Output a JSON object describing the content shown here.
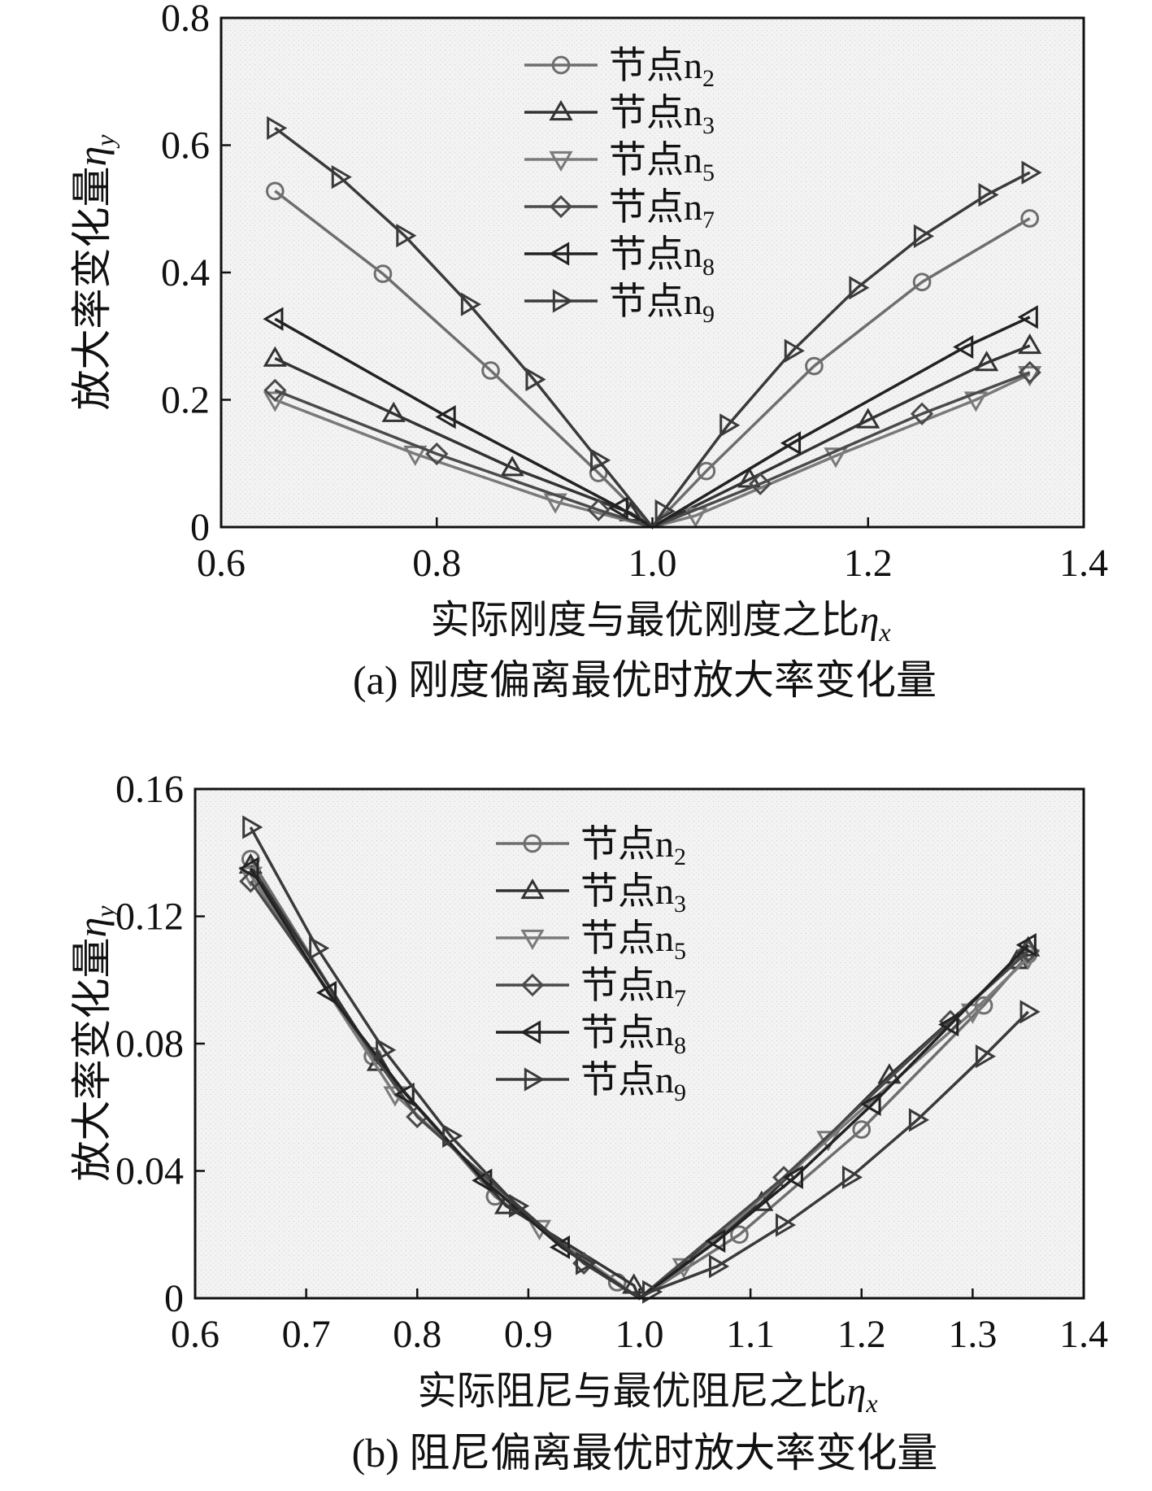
{
  "chart_data": [
    {
      "type": "line",
      "caption": "(a) 刚度偏离最优时放大率变化量",
      "xlabel": "实际刚度与最优刚度之比",
      "xlabel_symbol": "η",
      "xlabel_sub": "x",
      "ylabel": "放大率变化量",
      "ylabel_symbol": "η",
      "ylabel_sub": "y",
      "xlim": [
        0.6,
        1.4
      ],
      "ylim": [
        0,
        0.8
      ],
      "xticks": [
        "0.6",
        "0.8",
        "1.0",
        "1.2",
        "1.4"
      ],
      "yticks": [
        "0",
        "0.2",
        "0.4",
        "0.6",
        "0.8"
      ],
      "grid": false,
      "legend_position": "top-center",
      "series": [
        {
          "name": "节点",
          "sub": "2",
          "marker": "circle",
          "color": "#6e6e6e",
          "x": [
            0.65,
            0.75,
            0.85,
            0.95,
            1.0,
            1.05,
            1.15,
            1.25,
            1.35
          ],
          "y": [
            0.528,
            0.398,
            0.246,
            0.085,
            0.0,
            0.088,
            0.253,
            0.385,
            0.485
          ]
        },
        {
          "name": "节点",
          "sub": "3",
          "marker": "triangle-up",
          "color": "#333333",
          "x": [
            0.65,
            0.76,
            0.87,
            0.98,
            1.0,
            1.09,
            1.2,
            1.31,
            1.35
          ],
          "y": [
            0.265,
            0.178,
            0.093,
            0.022,
            0.0,
            0.075,
            0.168,
            0.258,
            0.285
          ]
        },
        {
          "name": "节点",
          "sub": "5",
          "marker": "triangle-down",
          "color": "#7a7a7a",
          "x": [
            0.65,
            0.78,
            0.91,
            1.0,
            1.04,
            1.17,
            1.3,
            1.35
          ],
          "y": [
            0.2,
            0.115,
            0.04,
            0.0,
            0.018,
            0.112,
            0.2,
            0.24
          ]
        },
        {
          "name": "节点",
          "sub": "7",
          "marker": "diamond",
          "color": "#4a4a4a",
          "x": [
            0.65,
            0.8,
            0.95,
            1.0,
            1.1,
            1.25,
            1.35
          ],
          "y": [
            0.215,
            0.115,
            0.027,
            0.0,
            0.068,
            0.178,
            0.243
          ]
        },
        {
          "name": "节点",
          "sub": "8",
          "marker": "triangle-left",
          "color": "#222222",
          "x": [
            0.65,
            0.81,
            0.97,
            1.0,
            1.13,
            1.29,
            1.35
          ],
          "y": [
            0.327,
            0.173,
            0.03,
            0.0,
            0.132,
            0.283,
            0.33
          ]
        },
        {
          "name": "节点",
          "sub": "9",
          "marker": "triangle-right",
          "color": "#3a3a3a",
          "x": [
            0.65,
            0.71,
            0.77,
            0.83,
            0.89,
            0.95,
            1.0,
            1.01,
            1.07,
            1.13,
            1.19,
            1.25,
            1.31,
            1.35
          ],
          "y": [
            0.627,
            0.55,
            0.458,
            0.35,
            0.232,
            0.105,
            0.0,
            0.025,
            0.16,
            0.277,
            0.376,
            0.457,
            0.522,
            0.557
          ]
        }
      ]
    },
    {
      "type": "line",
      "caption": "(b) 阻尼偏离最优时放大率变化量",
      "xlabel": "实际阻尼与最优阻尼之比",
      "xlabel_symbol": "η",
      "xlabel_sub": "x",
      "ylabel": "放大率变化量",
      "ylabel_symbol": "η",
      "ylabel_sub": "y",
      "xlim": [
        0.6,
        1.4
      ],
      "ylim": [
        0,
        0.16
      ],
      "xticks": [
        "0.6",
        "0.7",
        "0.8",
        "0.9",
        "1.0",
        "1.1",
        "1.2",
        "1.3",
        "1.4"
      ],
      "yticks": [
        "0",
        "0.04",
        "0.08",
        "0.12",
        "0.16"
      ],
      "grid": false,
      "legend_position": "top-center",
      "series": [
        {
          "name": "节点",
          "sub": "2",
          "marker": "circle",
          "color": "#6e6e6e",
          "x": [
            0.65,
            0.76,
            0.87,
            0.98,
            1.0,
            1.09,
            1.2,
            1.31,
            1.35
          ],
          "y": [
            0.138,
            0.076,
            0.032,
            0.005,
            0.0,
            0.02,
            0.053,
            0.092,
            0.108
          ]
        },
        {
          "name": "节点",
          "sub": "3",
          "marker": "triangle-up",
          "color": "#333333",
          "x": [
            0.65,
            0.765,
            0.88,
            0.995,
            1.0,
            1.11,
            1.225,
            1.34,
            1.35
          ],
          "y": [
            0.136,
            0.074,
            0.029,
            0.004,
            0.0,
            0.03,
            0.07,
            0.106,
            0.11
          ]
        },
        {
          "name": "节点",
          "sub": "5",
          "marker": "triangle-down",
          "color": "#7a7a7a",
          "x": [
            0.65,
            0.78,
            0.91,
            1.0,
            1.04,
            1.17,
            1.3,
            1.35
          ],
          "y": [
            0.133,
            0.064,
            0.022,
            0.0,
            0.01,
            0.05,
            0.09,
            0.107
          ]
        },
        {
          "name": "节点",
          "sub": "7",
          "marker": "diamond",
          "color": "#4a4a4a",
          "x": [
            0.65,
            0.8,
            0.95,
            1.0,
            1.13,
            1.28,
            1.35
          ],
          "y": [
            0.131,
            0.057,
            0.011,
            0.0,
            0.038,
            0.087,
            0.109
          ]
        },
        {
          "name": "节点",
          "sub": "8",
          "marker": "triangle-left",
          "color": "#222222",
          "x": [
            0.65,
            0.72,
            0.79,
            0.86,
            0.93,
            1.0,
            1.07,
            1.14,
            1.21,
            1.28,
            1.35
          ],
          "y": [
            0.135,
            0.096,
            0.064,
            0.037,
            0.016,
            0.0,
            0.018,
            0.038,
            0.061,
            0.086,
            0.111
          ]
        },
        {
          "name": "节点",
          "sub": "9",
          "marker": "triangle-right",
          "color": "#3a3a3a",
          "x": [
            0.65,
            0.71,
            0.77,
            0.83,
            0.89,
            0.95,
            1.0,
            1.01,
            1.07,
            1.13,
            1.19,
            1.25,
            1.31,
            1.35
          ],
          "y": [
            0.148,
            0.11,
            0.078,
            0.051,
            0.029,
            0.011,
            0.0,
            0.002,
            0.01,
            0.023,
            0.038,
            0.056,
            0.076,
            0.09
          ]
        }
      ]
    }
  ]
}
